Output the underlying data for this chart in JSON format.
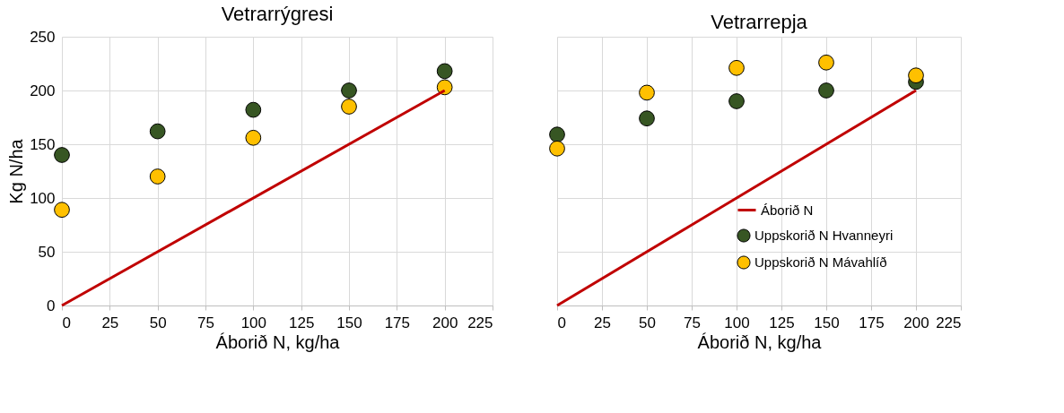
{
  "chart_data": [
    {
      "type": "scatter",
      "title": "Vetrarrýgresi",
      "xlabel": "Áborið N, kg/ha",
      "ylabel": "Kg N/ha",
      "xlim": [
        0,
        225
      ],
      "xticks": [
        0,
        25,
        50,
        75,
        100,
        125,
        150,
        175,
        200,
        225
      ],
      "ylim": [
        0,
        250
      ],
      "yticks": [
        0,
        50,
        100,
        150,
        200,
        250
      ],
      "grid": true,
      "legend": false,
      "series": [
        {
          "type": "line",
          "marker": "none",
          "color": "#c00000",
          "x": [
            0,
            200
          ],
          "values": [
            0,
            200
          ]
        },
        {
          "marker": "circle",
          "color": "#375623",
          "x": [
            0,
            50,
            100,
            150,
            200
          ],
          "values": [
            140,
            162,
            182,
            200,
            218
          ]
        },
        {
          "marker": "circle",
          "color": "#ffc000",
          "x": [
            0,
            50,
            100,
            150,
            200
          ],
          "values": [
            89,
            120,
            156,
            185,
            203
          ]
        }
      ]
    },
    {
      "type": "scatter",
      "title": "Vetrarrepja",
      "xlabel": "Áborið N, kg/ha",
      "xlim": [
        0,
        225
      ],
      "xticks": [
        0,
        25,
        50,
        75,
        100,
        125,
        150,
        175,
        200,
        225
      ],
      "ylim": [
        0,
        250
      ],
      "yticks": [
        0,
        50,
        100,
        150,
        200,
        250
      ],
      "tick_labels": "x",
      "grid": true,
      "legend": "bottom right",
      "series": [
        {
          "type": "line",
          "marker": "none",
          "name": "Áborið N",
          "color": "#c00000",
          "x": [
            0,
            200
          ],
          "values": [
            0,
            200
          ]
        },
        {
          "marker": "circle",
          "name": "Uppskorið N Hvanneyri",
          "color": "#375623",
          "x": [
            0,
            50,
            100,
            150,
            200
          ],
          "values": [
            159,
            174,
            190,
            200,
            208
          ]
        },
        {
          "marker": "circle",
          "name": "Uppskorið N Mávahlíð",
          "color": "#ffc000",
          "x": [
            0,
            50,
            100,
            150,
            200
          ],
          "values": [
            146,
            198,
            221,
            226,
            214
          ]
        }
      ]
    }
  ]
}
